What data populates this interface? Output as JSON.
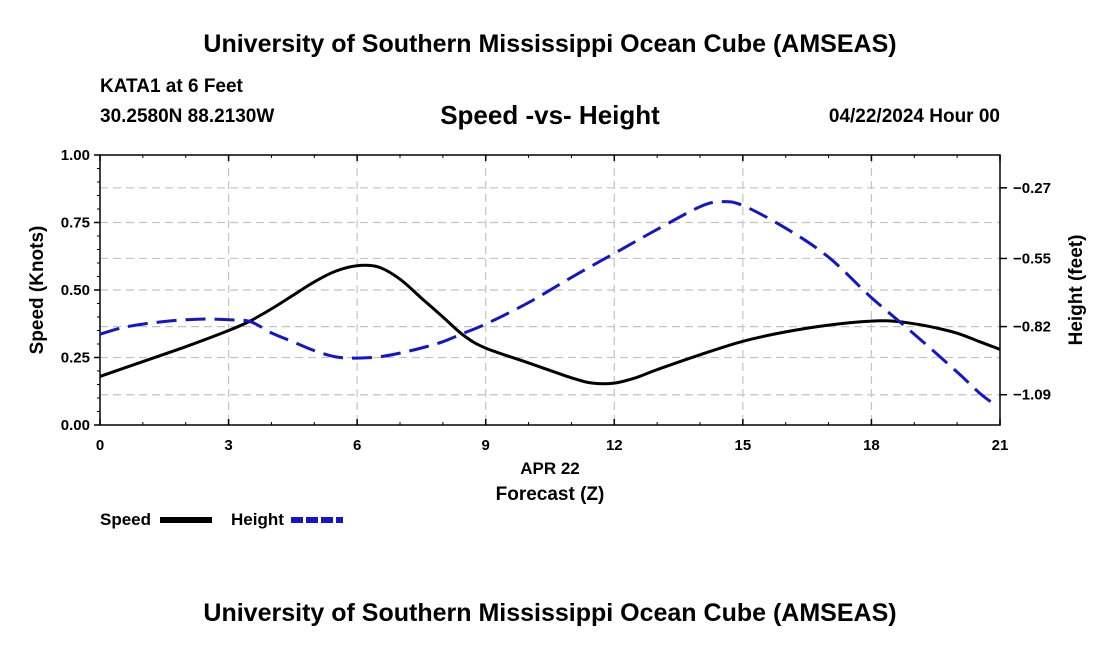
{
  "header": {
    "title_top": "University of Southern Mississippi Ocean Cube (AMSEAS)",
    "station": "KATA1 at 6 Feet",
    "coords": "30.2580N  88.2130W",
    "date": "04/22/2024 Hour 00",
    "title_bottom": "University of Southern Mississippi Ocean Cube (AMSEAS)"
  },
  "chart_data": {
    "type": "line",
    "title": "Speed -vs- Height",
    "xlabel": "Forecast (Z)",
    "xlabel_date": "APR 22",
    "ylabel": "Speed (Knots)",
    "y2label": "Height (feet)",
    "xlim": [
      0,
      21
    ],
    "ylim": [
      0,
      1
    ],
    "y2lim": [
      -1.21,
      -0.14
    ],
    "xticks": [
      0,
      3,
      6,
      9,
      12,
      15,
      18,
      21
    ],
    "xtick_labels": [
      "0",
      "3",
      "6",
      "9",
      "12",
      "15",
      "18",
      "21"
    ],
    "yticks": [
      0,
      0.25,
      0.5,
      0.75,
      1.0
    ],
    "ytick_labels": [
      "0.00",
      "0.25",
      "0.50",
      "0.75",
      "1.00"
    ],
    "y2ticks": [
      -1.09,
      -0.82,
      -0.55,
      -0.27
    ],
    "y2tick_labels": [
      "−1.09",
      "−0.82",
      "−0.55",
      "−0.27"
    ],
    "grid": true,
    "series": [
      {
        "name": "Speed",
        "axis": "left",
        "color": "#000000",
        "style": "solid",
        "x": [
          0,
          1,
          2,
          3,
          3.5,
          4,
          4.5,
          5,
          5.5,
          6,
          6.5,
          7,
          7.5,
          8,
          8.5,
          9,
          10,
          11,
          11.5,
          12,
          12.5,
          13,
          14,
          15,
          16,
          17,
          18,
          18.5,
          19,
          19.5,
          20,
          20.5,
          21
        ],
        "values": [
          0.18,
          0.235,
          0.29,
          0.35,
          0.385,
          0.43,
          0.48,
          0.53,
          0.57,
          0.59,
          0.585,
          0.54,
          0.47,
          0.4,
          0.33,
          0.285,
          0.23,
          0.175,
          0.155,
          0.155,
          0.175,
          0.205,
          0.26,
          0.31,
          0.345,
          0.37,
          0.385,
          0.385,
          0.375,
          0.36,
          0.34,
          0.31,
          0.28
        ]
      },
      {
        "name": "Height",
        "axis": "right",
        "color": "#1515cc",
        "style": "dashed",
        "x": [
          0,
          0.5,
          1,
          1.5,
          2,
          2.5,
          3,
          3.5,
          4,
          4.5,
          5,
          5.5,
          6,
          6.5,
          7,
          7.5,
          8,
          8.5,
          9,
          10,
          11,
          12,
          13,
          14,
          14.5,
          15,
          16,
          17,
          18,
          19,
          20,
          20.5,
          20.8
        ],
        "values": [
          -0.85,
          -0.825,
          -0.81,
          -0.8,
          -0.793,
          -0.79,
          -0.793,
          -0.8,
          -0.845,
          -0.88,
          -0.915,
          -0.94,
          -0.945,
          -0.94,
          -0.925,
          -0.905,
          -0.88,
          -0.845,
          -0.81,
          -0.725,
          -0.625,
          -0.53,
          -0.435,
          -0.345,
          -0.325,
          -0.34,
          -0.43,
          -0.545,
          -0.705,
          -0.85,
          -1.0,
          -1.08,
          -1.12
        ]
      }
    ],
    "legend": {
      "placement": "bottom-left",
      "entries": [
        "Speed",
        "Height"
      ]
    }
  }
}
